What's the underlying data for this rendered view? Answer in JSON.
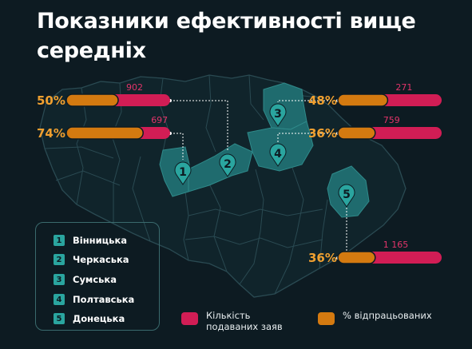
{
  "title": "Показники ефективності вище середніх",
  "colors": {
    "background": "#0d1b22",
    "count_bar": "#d11d55",
    "percent_bar": "#d47a10",
    "percent_text": "#f0a030",
    "count_text": "#e2346a",
    "region_fill": "#1f6b6e",
    "marker": "#2aa59f",
    "map_line": "#2a4a52"
  },
  "legend": {
    "items": [
      {
        "num": "1",
        "name": "Вінницька"
      },
      {
        "num": "2",
        "name": "Черкаська"
      },
      {
        "num": "3",
        "name": "Сумська"
      },
      {
        "num": "4",
        "name": "Полтавська"
      },
      {
        "num": "5",
        "name": "Донецька"
      }
    ]
  },
  "key": {
    "count_label": "Кількість подаваних заяв",
    "percent_label": "% відпрацьованих"
  },
  "chart_data": {
    "type": "bar",
    "title": "Показники ефективності вище середніх",
    "series": [
      {
        "name": "Кількість поданих заяв",
        "unit": "count"
      },
      {
        "name": "% відпрацьованих",
        "unit": "percent"
      }
    ],
    "regions": [
      {
        "num": "1",
        "name": "Вінницька",
        "count": 697,
        "count_label": "697",
        "percent": 74,
        "percent_label": "74%"
      },
      {
        "num": "2",
        "name": "Черкаська",
        "count": 902,
        "count_label": "902",
        "percent": 50,
        "percent_label": "50%"
      },
      {
        "num": "3",
        "name": "Сумська",
        "count": 271,
        "count_label": "271",
        "percent": 48,
        "percent_label": "48%"
      },
      {
        "num": "4",
        "name": "Полтавська",
        "count": 759,
        "count_label": "759",
        "percent": 36,
        "percent_label": "36%"
      },
      {
        "num": "5",
        "name": "Донецька",
        "count": 1165,
        "count_label": "1 165",
        "percent": 36,
        "percent_label": "36%"
      }
    ]
  }
}
